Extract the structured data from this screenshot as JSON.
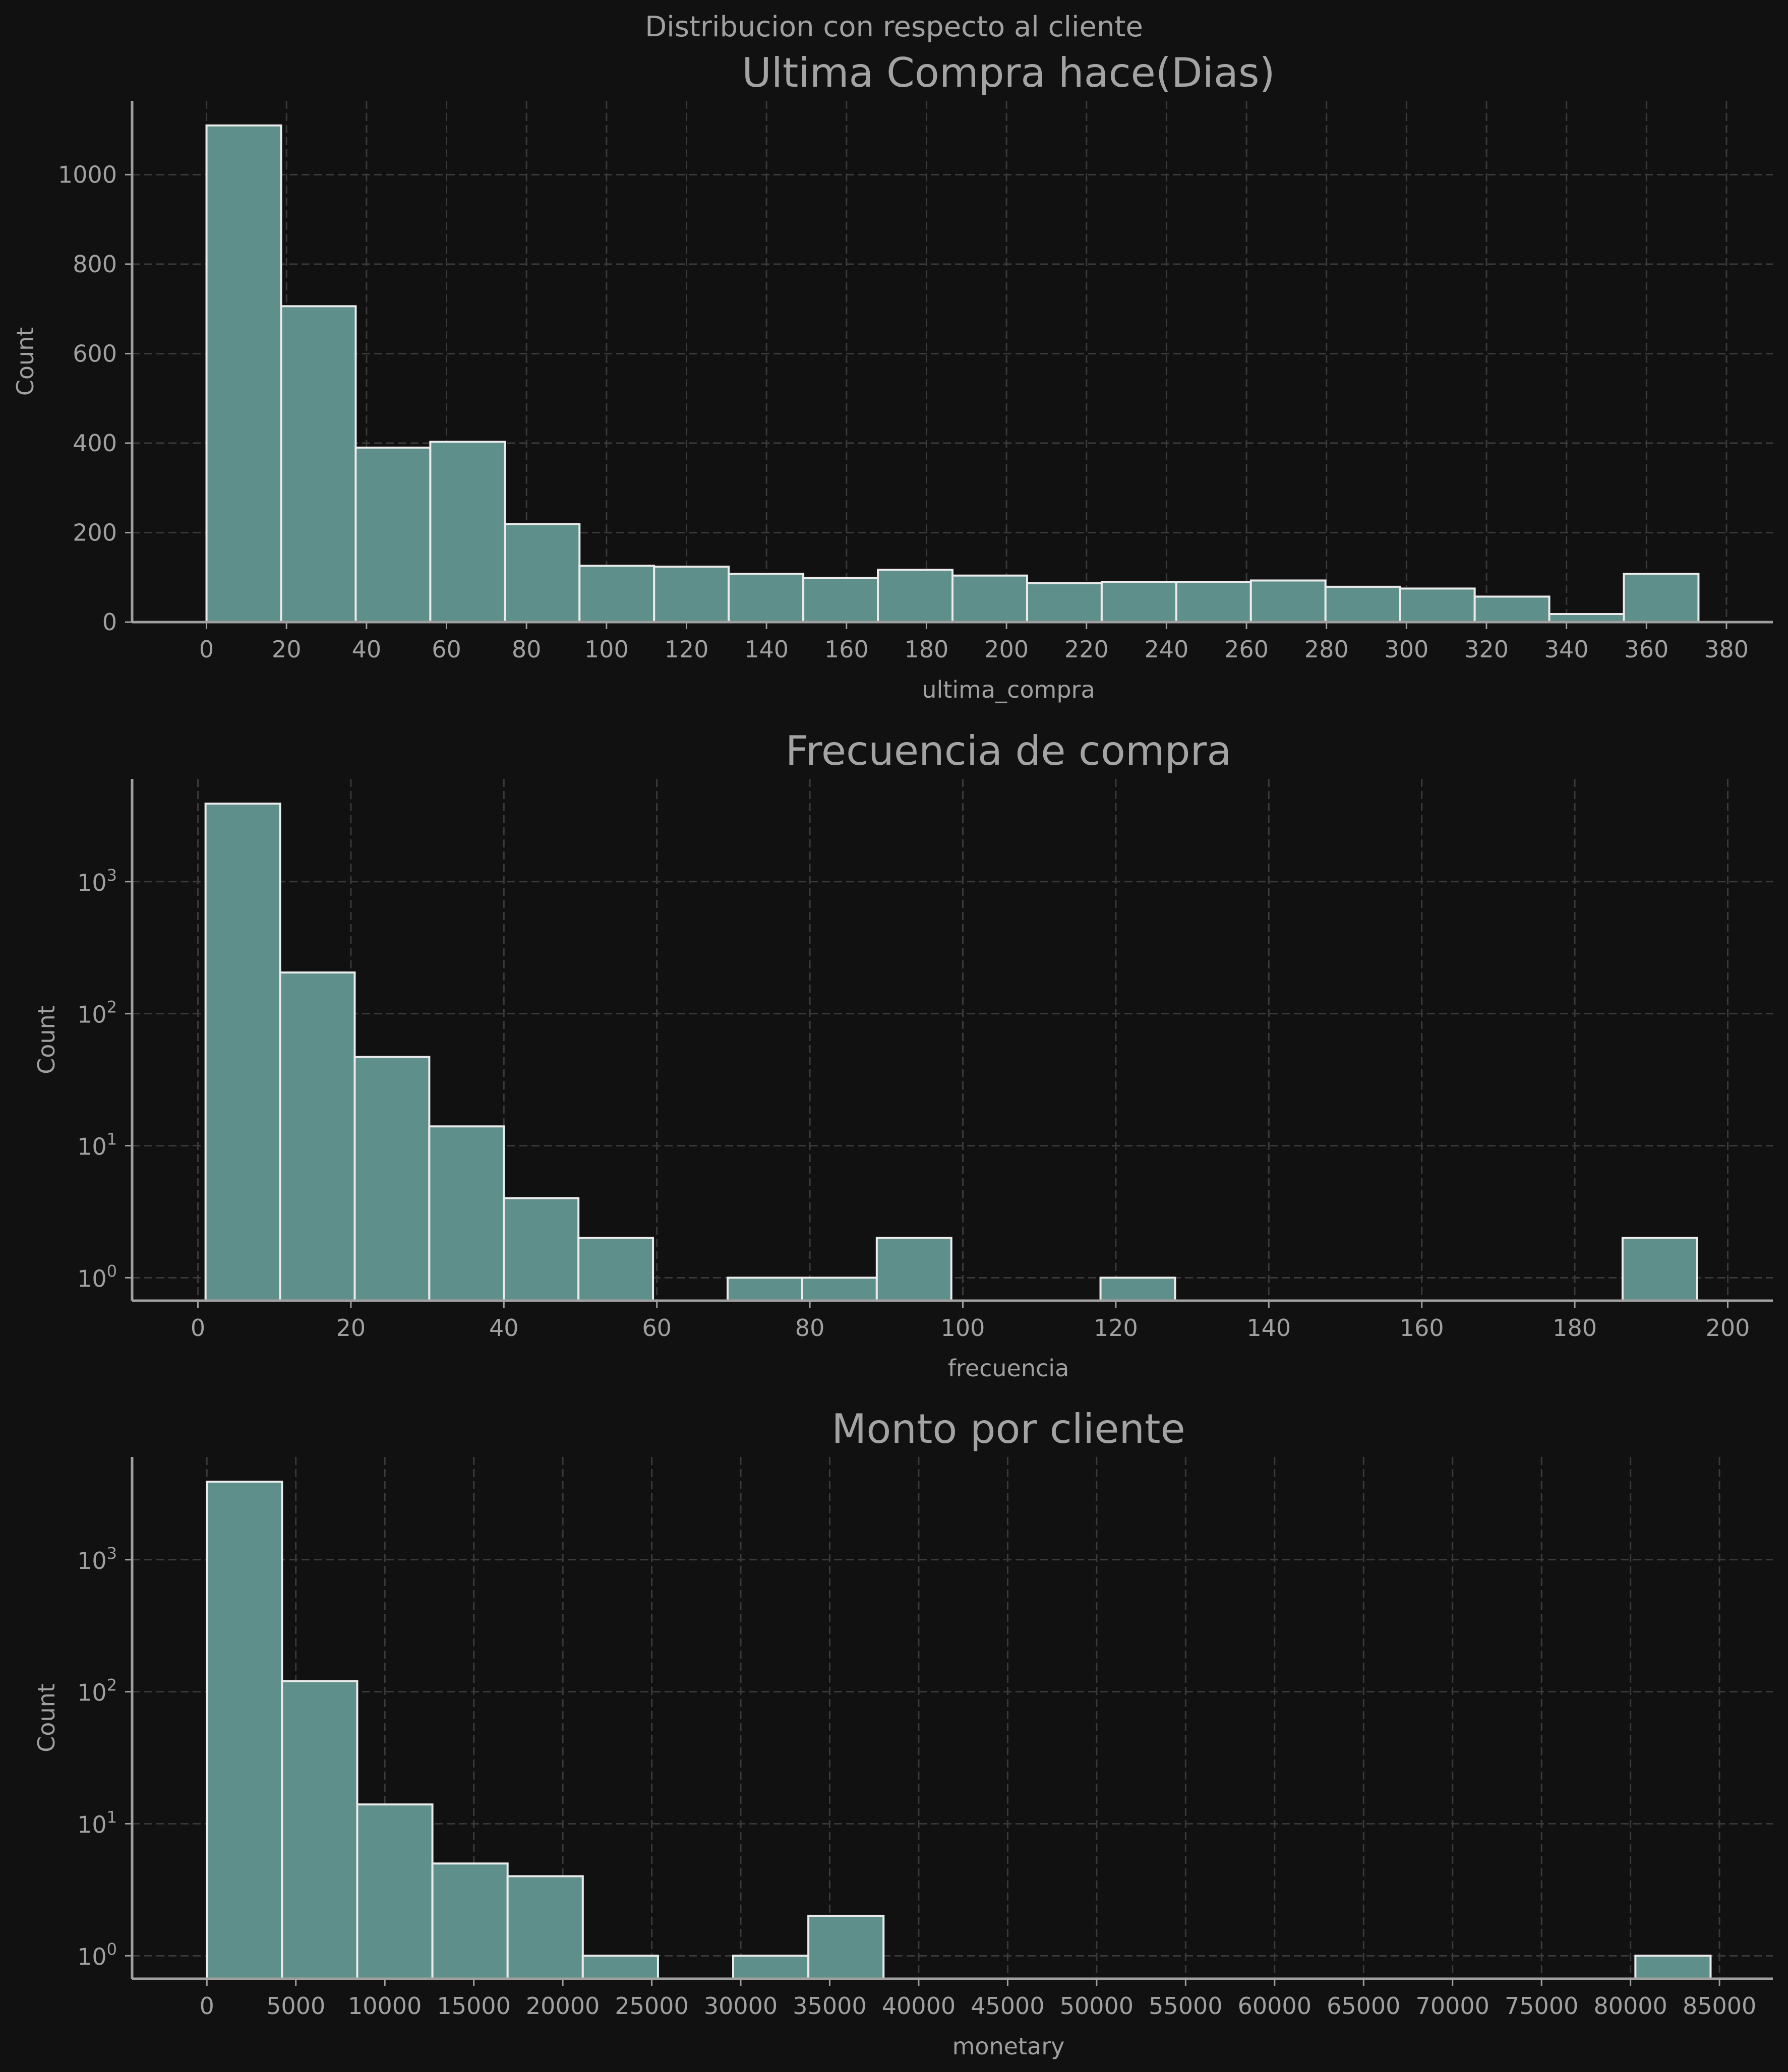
{
  "figure": {
    "suptitle": "Distribucion con respecto al cliente",
    "colors": {
      "background": "#111111",
      "bar_fill": "#5f8f8a",
      "bar_edge": "#ebebeb",
      "text": "#a0a0a0",
      "grid": "#3a3a3a"
    }
  },
  "chart_data": [
    {
      "type": "bar",
      "subtype": "histogram",
      "title": "Ultima Compra hace(Dias)",
      "xlabel": "ultima_compra",
      "ylabel": "Count",
      "yscale": "linear",
      "grid": true,
      "xlim": [
        -18.6,
        391.6
      ],
      "ylim": [
        0,
        1165
      ],
      "xticks": [
        0,
        20,
        40,
        60,
        80,
        100,
        120,
        140,
        160,
        180,
        200,
        220,
        240,
        260,
        280,
        300,
        320,
        340,
        360,
        380
      ],
      "yticks": [
        0,
        200,
        400,
        600,
        800,
        1000
      ],
      "bin_edges": [
        0,
        18.65,
        37.3,
        55.95,
        74.6,
        93.25,
        111.9,
        130.55,
        149.2,
        167.85,
        186.5,
        205.15,
        223.8,
        242.45,
        261.1,
        279.75,
        298.4,
        317.05,
        335.7,
        354.35,
        373
      ],
      "counts": [
        1110,
        706,
        390,
        403,
        219,
        126,
        124,
        108,
        99,
        117,
        104,
        87,
        90,
        90,
        93,
        79,
        75,
        57,
        18,
        108
      ]
    },
    {
      "type": "bar",
      "subtype": "histogram",
      "title": "Frecuencia de compra",
      "xlabel": "frecuencia",
      "ylabel": "Count",
      "yscale": "log",
      "grid": true,
      "xlim": [
        -8.6,
        205.9
      ],
      "ylim": [
        0.67,
        6000
      ],
      "xticks": [
        0,
        20,
        40,
        60,
        80,
        100,
        120,
        140,
        160,
        180,
        200
      ],
      "yticks": [
        1,
        10,
        100,
        1000
      ],
      "ytick_labels": [
        {
          "base": "10",
          "exp": "0"
        },
        {
          "base": "10",
          "exp": "1"
        },
        {
          "base": "10",
          "exp": "2"
        },
        {
          "base": "10",
          "exp": "3"
        }
      ],
      "bin_edges": [
        1,
        10.75,
        20.5,
        30.25,
        40,
        49.75,
        59.5,
        69.25,
        79,
        88.75,
        98.5,
        108.25,
        118,
        127.75,
        137.5,
        147.25,
        157,
        166.75,
        176.5,
        186.25,
        196
      ],
      "counts": [
        3900,
        205,
        47,
        14,
        4,
        2,
        0,
        1,
        1,
        2,
        0,
        0,
        1,
        0,
        0,
        0,
        0,
        0,
        0,
        2
      ]
    },
    {
      "type": "bar",
      "subtype": "histogram",
      "title": "Monto por cliente",
      "xlabel": "monetary",
      "ylabel": "Count",
      "yscale": "log",
      "grid": true,
      "xlim": [
        -4200,
        88000
      ],
      "ylim": [
        0.67,
        6000
      ],
      "xticks": [
        0,
        5000,
        10000,
        15000,
        20000,
        25000,
        30000,
        35000,
        40000,
        45000,
        50000,
        55000,
        60000,
        65000,
        70000,
        75000,
        80000,
        85000
      ],
      "yticks": [
        1,
        10,
        100,
        1000
      ],
      "ytick_labels": [
        {
          "base": "10",
          "exp": "0"
        },
        {
          "base": "10",
          "exp": "1"
        },
        {
          "base": "10",
          "exp": "2"
        },
        {
          "base": "10",
          "exp": "3"
        }
      ],
      "bin_edges": [
        0,
        4225,
        8450,
        12675,
        16900,
        21125,
        25350,
        29575,
        33800,
        38025,
        42250,
        46475,
        50700,
        54925,
        59150,
        63375,
        67600,
        71825,
        76050,
        80275,
        84500
      ],
      "counts": [
        3900,
        120,
        14,
        5,
        4,
        1,
        0,
        1,
        2,
        0,
        0,
        0,
        0,
        0,
        0,
        0,
        0,
        0,
        0,
        1
      ]
    }
  ]
}
